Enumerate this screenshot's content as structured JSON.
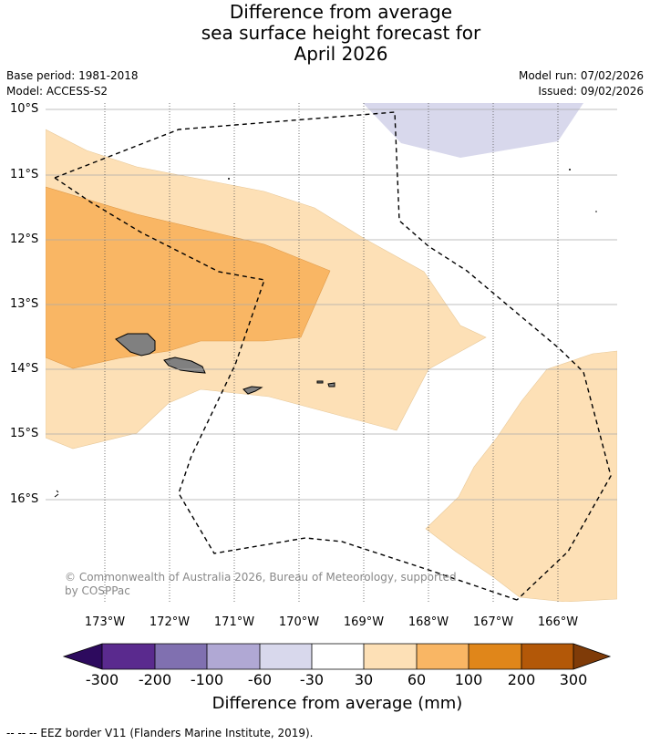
{
  "title": {
    "line1": "Difference from average",
    "line2": "sea surface height forecast for",
    "line3": "April 2026"
  },
  "meta": {
    "base_period": "Base period: 1981-2018",
    "model": "Model: ACCESS-S2",
    "model_run": "Model run: 07/02/2026",
    "issued": "Issued: 09/02/2026"
  },
  "axes": {
    "lat_labels": [
      "10°S",
      "11°S",
      "12°S",
      "13°S",
      "14°S",
      "15°S",
      "16°S"
    ],
    "lon_labels": [
      "173°W",
      "172°W",
      "171°W",
      "170°W",
      "169°W",
      "168°W",
      "167°W",
      "166°W"
    ]
  },
  "copyright": "© Commonwealth of Australia 2026, Bureau of Meteorology, supported by COSPPac",
  "colorbar": {
    "title": "Difference from average (mm)",
    "labels": [
      "-300",
      "-200",
      "-100",
      "-60",
      "-30",
      "30",
      "60",
      "100",
      "200",
      "300"
    ],
    "colors": [
      "#2d0a5e",
      "#5a2a8e",
      "#8070b0",
      "#b0a8d4",
      "#d8d8ec",
      "#ffffff",
      "#fde0b6",
      "#f9b664",
      "#e0861a",
      "#b35808",
      "#7f3b08"
    ]
  },
  "footer": "--  --  -- EEZ border V11 (Flanders Marine Institute, 2019)."
}
